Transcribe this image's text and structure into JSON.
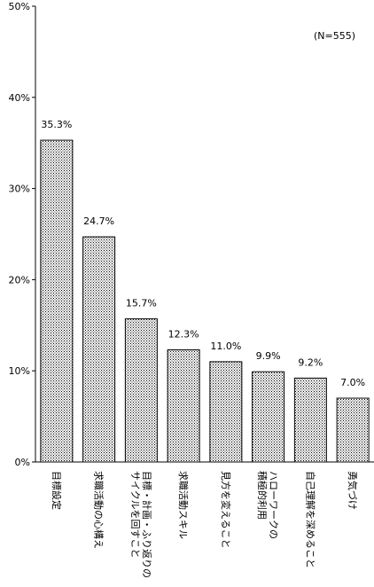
{
  "chart_data": {
    "type": "bar",
    "title": "",
    "xlabel": "",
    "ylabel": "",
    "note": "(N=555)",
    "categories": [
      "目標設定",
      "求職活動の心構え",
      "目標・計画・ふり返りのサイクルを回すこと",
      "求職活動スキル",
      "見方を変えること",
      "ハローワークの積極的利用",
      "自己理解を深めること",
      "勇気づけ"
    ],
    "category_lines": [
      [
        "目標設定"
      ],
      [
        "求職活動の心構え"
      ],
      [
        "目標・計画・ふり返りの",
        "サイクルを回すこと"
      ],
      [
        "求職活動スキル"
      ],
      [
        "見方を変えること"
      ],
      [
        "ハローワークの",
        "積極的利用"
      ],
      [
        "自己理解を深めること"
      ],
      [
        "勇気づけ"
      ]
    ],
    "values": [
      35.3,
      24.7,
      15.7,
      12.3,
      11.0,
      9.9,
      9.2,
      7.0
    ],
    "value_labels": [
      "35.3%",
      "24.7%",
      "15.7%",
      "12.3%",
      "11.0%",
      "9.9%",
      "9.2%",
      "7.0%"
    ],
    "ylim": [
      0,
      50
    ],
    "yticks": [
      0,
      10,
      20,
      30,
      40,
      50
    ],
    "ytick_labels": [
      "0%",
      "10%",
      "20%",
      "30%",
      "40%",
      "50%"
    ],
    "grid": false,
    "bar_fill": "dotted"
  }
}
